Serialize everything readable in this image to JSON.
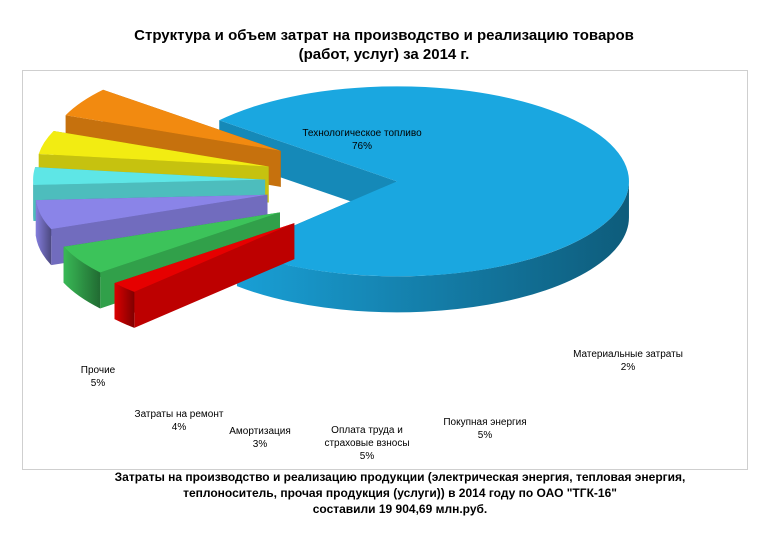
{
  "header": {
    "title_line1": "Структура и объем затрат на производство и реализацию товаров",
    "title_line2": "(работ, услуг)  за 2014 г."
  },
  "footer": {
    "line1": "Затраты на производство и реализацию продукции (электрическая энергия,  тепловая энергия,",
    "line2": "теплоноситель, прочая продукция (услуги)) в 2014 году по ОАО \"ТГК-16\"",
    "line3": "составили 19 904,69 млн.руб."
  },
  "chart_data": {
    "type": "pie",
    "style": "3d-exploded",
    "title": "Структура и объем затрат на производство и реализацию товаров (работ, услуг)  за 2014 г.",
    "slices": [
      {
        "label_lines": [
          "Технологическое топливо"
        ],
        "value": 76,
        "value_label": "76%",
        "color": "#1aa7e0"
      },
      {
        "label_lines": [
          "Материальные затраты"
        ],
        "value": 2,
        "value_label": "2%",
        "color": "#e60000"
      },
      {
        "label_lines": [
          "Покупная энергия"
        ],
        "value": 5,
        "value_label": "5%",
        "color": "#3cc35a"
      },
      {
        "label_lines": [
          "Оплата труда и",
          "страховые взносы"
        ],
        "value": 5,
        "value_label": "5%",
        "color": "#8a84e8"
      },
      {
        "label_lines": [
          "Амортизация"
        ],
        "value": 3,
        "value_label": "3%",
        "color": "#5ee6e6"
      },
      {
        "label_lines": [
          "Затраты на ремонт"
        ],
        "value": 4,
        "value_label": "4%",
        "color": "#f2ec12"
      },
      {
        "label_lines": [
          "Прочие"
        ],
        "value": 5,
        "value_label": "5%",
        "color": "#f28a10"
      }
    ]
  }
}
